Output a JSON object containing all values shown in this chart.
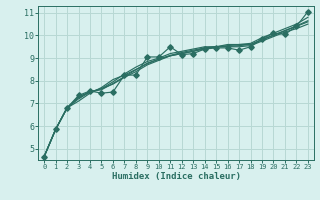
{
  "xlabel": "Humidex (Indice chaleur)",
  "bg_color": "#d8f0ee",
  "grid_color": "#b8d8d4",
  "line_color": "#2a6e62",
  "xlim": [
    -0.5,
    23.5
  ],
  "ylim": [
    4.5,
    11.3
  ],
  "yticks": [
    5,
    6,
    7,
    8,
    9,
    10,
    11
  ],
  "xticks": [
    0,
    1,
    2,
    3,
    4,
    5,
    6,
    7,
    8,
    9,
    10,
    11,
    12,
    13,
    14,
    15,
    16,
    17,
    18,
    19,
    20,
    21,
    22,
    23
  ],
  "series": [
    [
      4.65,
      5.85,
      6.8,
      7.35,
      7.55,
      7.45,
      7.5,
      8.25,
      8.25,
      9.05,
      9.05,
      9.5,
      9.15,
      9.2,
      9.4,
      9.45,
      9.45,
      9.35,
      9.5,
      9.85,
      10.1,
      10.05,
      10.4,
      11.05
    ],
    [
      4.65,
      5.85,
      6.8,
      7.1,
      7.45,
      7.7,
      8.05,
      8.25,
      8.5,
      8.75,
      8.95,
      9.1,
      9.2,
      9.3,
      9.4,
      9.5,
      9.5,
      9.5,
      9.55,
      9.75,
      9.95,
      10.15,
      10.3,
      10.5
    ],
    [
      4.65,
      5.85,
      6.8,
      7.2,
      7.5,
      7.65,
      7.85,
      8.15,
      8.4,
      8.7,
      8.9,
      9.1,
      9.2,
      9.3,
      9.45,
      9.5,
      9.55,
      9.6,
      9.6,
      9.8,
      10.0,
      10.2,
      10.4,
      10.6
    ],
    [
      4.65,
      5.85,
      6.8,
      7.3,
      7.5,
      7.65,
      7.95,
      8.3,
      8.6,
      8.85,
      9.0,
      9.2,
      9.3,
      9.4,
      9.5,
      9.5,
      9.6,
      9.6,
      9.65,
      9.9,
      10.1,
      10.3,
      10.5,
      10.8
    ],
    [
      4.65,
      5.85,
      6.8,
      7.25,
      7.52,
      7.6,
      7.88,
      8.18,
      8.48,
      8.78,
      8.95,
      9.12,
      9.25,
      9.35,
      9.45,
      9.5,
      9.52,
      9.55,
      9.6,
      9.82,
      10.02,
      10.22,
      10.42,
      10.65
    ]
  ],
  "marker_series_idx": 0,
  "marker": "D",
  "marker_size": 2.8,
  "linewidth": 0.85
}
